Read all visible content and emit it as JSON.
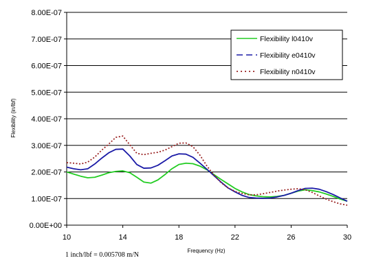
{
  "chart_data": {
    "type": "line",
    "title": "",
    "xlabel": "Frequency (Hz)",
    "ylabel": "Flexibility (in/lbf)",
    "xlim": [
      10,
      30
    ],
    "ylim": [
      0,
      8e-07
    ],
    "xticks": [
      10,
      14,
      18,
      22,
      26,
      30
    ],
    "xtick_labels": [
      "10",
      "14",
      "18",
      "22",
      "26",
      "30"
    ],
    "yticks": [
      0,
      1e-07,
      2e-07,
      3e-07,
      4e-07,
      5e-07,
      6e-07,
      7e-07,
      8e-07
    ],
    "ytick_labels": [
      "0.00E+00",
      "1.00E-07",
      "2.00E-07",
      "3.00E-07",
      "4.00E-07",
      "5.00E-07",
      "6.00E-07",
      "7.00E-07",
      "8.00E-07"
    ],
    "grid": "horizontal",
    "legend_position": "top-right",
    "x": [
      10,
      10.5,
      11,
      11.5,
      12,
      12.5,
      13,
      13.5,
      14,
      14.5,
      15,
      15.5,
      16,
      16.5,
      17,
      17.5,
      18,
      18.5,
      19,
      19.5,
      20,
      20.5,
      21,
      21.5,
      22,
      22.5,
      23,
      23.5,
      24,
      24.5,
      25,
      25.5,
      26,
      26.5,
      27,
      27.5,
      28,
      28.5,
      29,
      29.5,
      30
    ],
    "series": [
      {
        "name": "Flexibility l0410v",
        "color": "#22cc22",
        "dash": "solid",
        "values": [
          2e-07,
          1.92e-07,
          1.84e-07,
          1.78e-07,
          1.8e-07,
          1.88e-07,
          1.97e-07,
          2.02e-07,
          2.04e-07,
          1.97e-07,
          1.8e-07,
          1.62e-07,
          1.58e-07,
          1.7e-07,
          1.9e-07,
          2.12e-07,
          2.28e-07,
          2.33e-07,
          2.31e-07,
          2.22e-07,
          2.08e-07,
          1.9e-07,
          1.72e-07,
          1.55e-07,
          1.38e-07,
          1.25e-07,
          1.15e-07,
          1.1e-07,
          1.07e-07,
          1.06e-07,
          1.08e-07,
          1.12e-07,
          1.2e-07,
          1.28e-07,
          1.33e-07,
          1.3e-07,
          1.25e-07,
          1.17e-07,
          1.08e-07,
          9.8e-08,
          9e-08
        ]
      },
      {
        "name": "Flexibility e0410v",
        "color": "#1a1aa6",
        "dash": "dash",
        "values": [
          2.18e-07,
          2.12e-07,
          2.08e-07,
          2.12e-07,
          2.3e-07,
          2.52e-07,
          2.72e-07,
          2.85e-07,
          2.86e-07,
          2.6e-07,
          2.28e-07,
          2.14e-07,
          2.15e-07,
          2.25e-07,
          2.42e-07,
          2.6e-07,
          2.68e-07,
          2.67e-07,
          2.55e-07,
          2.33e-07,
          2.1e-07,
          1.86e-07,
          1.62e-07,
          1.4e-07,
          1.25e-07,
          1.12e-07,
          1.04e-07,
          1.02e-07,
          1.01e-07,
          1.02e-07,
          1.06e-07,
          1.12e-07,
          1.2e-07,
          1.3e-07,
          1.38e-07,
          1.39e-07,
          1.35e-07,
          1.26e-07,
          1.15e-07,
          1.02e-07,
          9e-08
        ]
      },
      {
        "name": "Flexibility n0410v",
        "color": "#992222",
        "dash": "dot",
        "values": [
          2.35e-07,
          2.33e-07,
          2.3e-07,
          2.37e-07,
          2.56e-07,
          2.82e-07,
          3.05e-07,
          3.3e-07,
          3.35e-07,
          3.02e-07,
          2.7e-07,
          2.65e-07,
          2.7e-07,
          2.74e-07,
          2.82e-07,
          2.95e-07,
          3.08e-07,
          3.09e-07,
          2.95e-07,
          2.63e-07,
          2.22e-07,
          1.88e-07,
          1.6e-07,
          1.4e-07,
          1.27e-07,
          1.19e-07,
          1.14e-07,
          1.14e-07,
          1.18e-07,
          1.23e-07,
          1.28e-07,
          1.32e-07,
          1.35e-07,
          1.37e-07,
          1.33e-07,
          1.23e-07,
          1.1e-07,
          9.8e-08,
          8.8e-08,
          8e-08,
          7.5e-08
        ]
      }
    ],
    "note": "1 inch/lbf = 0.005708 m/N"
  }
}
